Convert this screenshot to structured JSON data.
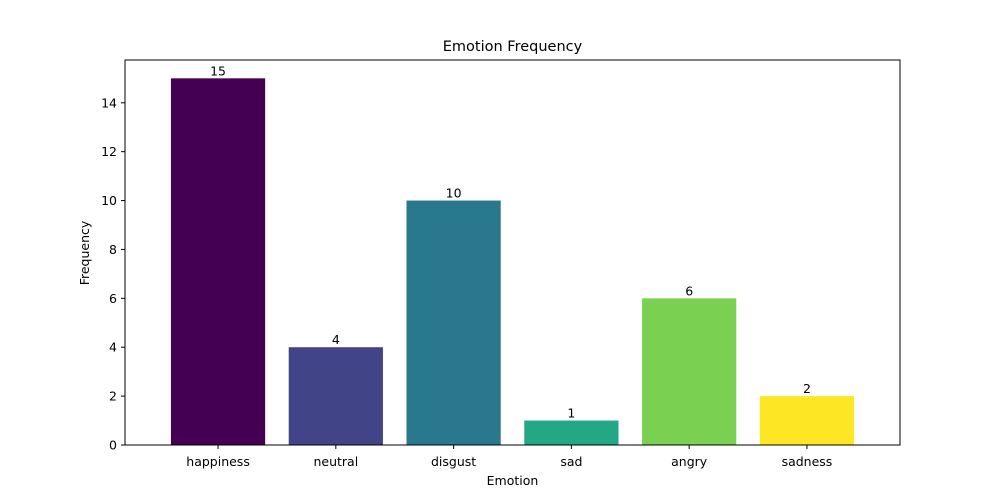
{
  "chart_data": {
    "type": "bar",
    "title": "Emotion Frequency",
    "xlabel": "Emotion",
    "ylabel": "Frequency",
    "categories": [
      "happiness",
      "neutral",
      "disgust",
      "sad",
      "angry",
      "sadness"
    ],
    "values": [
      15,
      4,
      10,
      1,
      6,
      2
    ],
    "data_labels": [
      "15",
      "4",
      "10",
      "1",
      "6",
      "2"
    ],
    "colors": [
      "#440154",
      "#414487",
      "#2a788e",
      "#22a884",
      "#7ad151",
      "#fde725"
    ],
    "ylim": [
      0,
      15.75
    ],
    "yticks": [
      0,
      2,
      4,
      6,
      8,
      10,
      12,
      14
    ],
    "grid": false,
    "legend": "none"
  }
}
